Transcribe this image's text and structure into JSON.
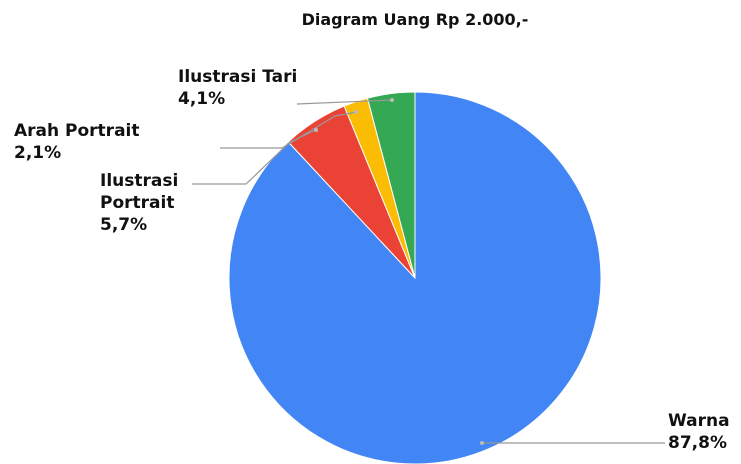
{
  "chart_data": {
    "type": "pie",
    "title": "Diagram Uang Rp 2.000,-",
    "categories": [
      "Warna",
      "Ilustrasi Portrait",
      "Arah Portrait",
      "Ilustrasi Tari"
    ],
    "values": [
      87.8,
      5.7,
      2.1,
      4.1
    ],
    "value_labels": [
      "87,8%",
      "5,7%",
      "2,1%",
      "4,1%"
    ],
    "colors": [
      "#4285f4",
      "#ea4335",
      "#fbbc04",
      "#34a853"
    ]
  }
}
